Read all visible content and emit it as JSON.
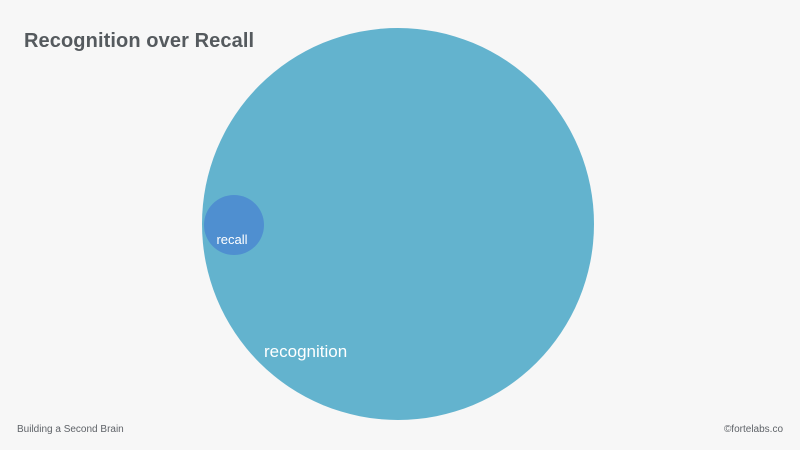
{
  "title": "Recognition over Recall",
  "diagram": {
    "outer_label": "recognition",
    "inner_label": "recall"
  },
  "footer": {
    "left": "Building a Second Brain",
    "right": "©fortelabs.co"
  },
  "colors": {
    "background": "#f7f7f7",
    "recognition": "#63b3ce",
    "recall": "#4f8fd0",
    "text": "#555a5e",
    "label": "#ffffff"
  }
}
